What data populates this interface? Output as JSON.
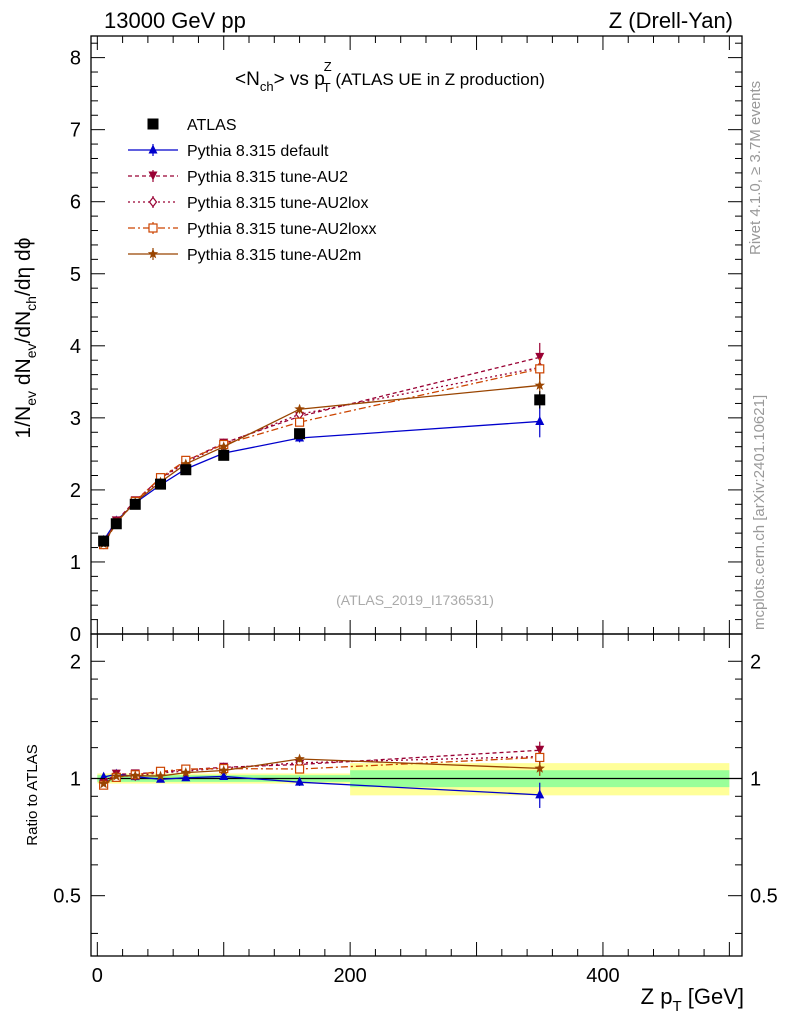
{
  "header": {
    "left": "13000 GeV pp",
    "right": "Z (Drell-Yan)"
  },
  "side_labels": {
    "rivet": "Rivet 4.1.0, ≥ 3.7M events",
    "mcplots": "mcplots.cern.ch [arXiv:2401.10621]"
  },
  "watermark": "(ATLAS_2019_I1736531)",
  "chart_data": [
    {
      "type": "line",
      "title_parts": {
        "lhs": "<N",
        "lhs_sub": "ch",
        "vs": "> vs p",
        "sup": "Z",
        "sub": "T",
        "rest": " (ATLAS UE in Z production)"
      },
      "ylabel_parts": {
        "a": "1/N",
        "a_sub": "ev",
        "b": " dN",
        "b_sub": "ev",
        "c": "/dN",
        "c_sub": "ch",
        "d": "/dη dϕ"
      },
      "xlim": [
        -5,
        510
      ],
      "ylim": [
        0,
        8.3
      ],
      "y_ticks": [
        0,
        1,
        2,
        3,
        4,
        5,
        6,
        7,
        8
      ],
      "x": [
        5,
        15,
        30,
        50,
        70,
        100,
        160,
        350
      ],
      "series": [
        {
          "name": "ATLAS",
          "kind": "data",
          "color": "#000000",
          "marker": "square",
          "values": [
            1.29,
            1.53,
            1.8,
            2.08,
            2.28,
            2.48,
            2.78,
            3.25
          ],
          "errors": [
            0.02,
            0.02,
            0.03,
            0.03,
            0.04,
            0.05,
            0.07,
            0.12
          ]
        },
        {
          "name": "Pythia 8.315 default",
          "color": "#0000cc",
          "dash": "",
          "marker": "triangle-up",
          "values": [
            1.3,
            1.57,
            1.82,
            2.07,
            2.29,
            2.51,
            2.72,
            2.95
          ],
          "errors": [
            0.01,
            0.01,
            0.02,
            0.02,
            0.03,
            0.04,
            0.06,
            0.22
          ]
        },
        {
          "name": "Pythia 8.315 tune-AU2",
          "color": "#990033",
          "dash": "4,3",
          "marker": "triangle-down",
          "values": [
            1.26,
            1.57,
            1.85,
            2.16,
            2.4,
            2.65,
            3.02,
            3.84
          ],
          "errors": [
            0.01,
            0.01,
            0.02,
            0.02,
            0.03,
            0.04,
            0.06,
            0.2
          ]
        },
        {
          "name": "Pythia 8.315 tune-AU2lox",
          "color": "#990033",
          "dash": "2,3",
          "marker": "diamond-open",
          "values": [
            1.25,
            1.55,
            1.83,
            2.15,
            2.38,
            2.64,
            3.05,
            3.7
          ],
          "errors": [
            0.01,
            0.01,
            0.02,
            0.02,
            0.03,
            0.04,
            0.06,
            0.15
          ]
        },
        {
          "name": "Pythia 8.315 tune-AU2loxx",
          "color": "#cc4400",
          "dash": "7,3,2,3",
          "marker": "square-open",
          "values": [
            1.24,
            1.54,
            1.84,
            2.17,
            2.41,
            2.63,
            2.94,
            3.68
          ],
          "errors": [
            0.01,
            0.01,
            0.02,
            0.02,
            0.03,
            0.04,
            0.06,
            0.15
          ]
        },
        {
          "name": "Pythia 8.315 tune-AU2m",
          "color": "#994400",
          "dash": "",
          "marker": "star",
          "values": [
            1.25,
            1.55,
            1.83,
            2.11,
            2.36,
            2.6,
            3.12,
            3.45
          ],
          "errors": [
            0.01,
            0.01,
            0.02,
            0.02,
            0.03,
            0.04,
            0.06,
            0.15
          ]
        }
      ]
    },
    {
      "type": "line",
      "ylabel": "Ratio to ATLAS",
      "xlabel_parts": {
        "main": "Z p",
        "sub": "T",
        "unit": " [GeV]"
      },
      "xlim": [
        -5,
        510
      ],
      "ylim": [
        0.35,
        2.35
      ],
      "x_ticks": [
        0,
        200,
        400
      ],
      "y_ticks": [
        0.5,
        1,
        2
      ],
      "bands": [
        {
          "xmin": 0,
          "xmax": 200,
          "stat": [
            0.98,
            1.02
          ],
          "total": [
            0.97,
            1.03
          ]
        },
        {
          "xmin": 200,
          "xmax": 500,
          "stat": [
            0.95,
            1.05
          ],
          "total": [
            0.905,
            1.095
          ]
        }
      ],
      "band_colors": {
        "stat": "#99ff99",
        "total": "#ffff99"
      }
    }
  ]
}
